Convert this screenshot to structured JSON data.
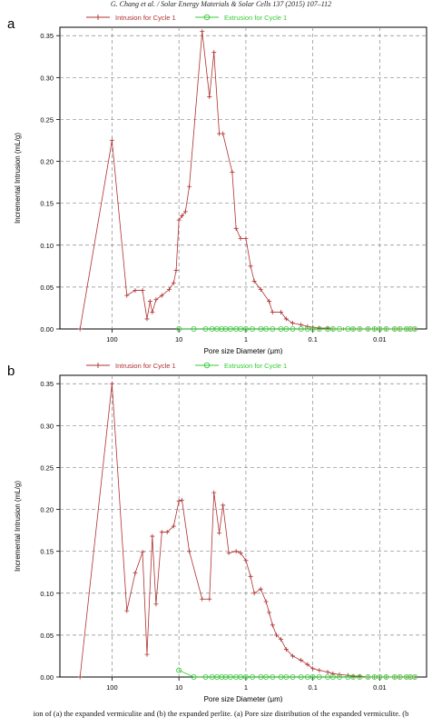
{
  "header": {
    "text": "G. Chang et al. / Solar Energy Materials & Solar Cells 137 (2015) 107–112"
  },
  "caption": {
    "text": "ion of (a) the expanded vermiculite and (b) the expanded perlite. (a) Pore size distribution of the expanded vermiculite. (b"
  },
  "colors": {
    "intrusion": "#b03030",
    "extrusion": "#33cc33",
    "grid": "#888888"
  },
  "chart_data": [
    {
      "panel": "a",
      "type": "line",
      "xlabel": "Pore size Diameter (μm)",
      "ylabel": "Incremental Intrusion (mL/g)",
      "x_scale": "log-reversed",
      "xlim": [
        600,
        0.002
      ],
      "ylim": [
        0,
        0.36
      ],
      "x_ticks": [
        100,
        10,
        1,
        0.1,
        0.01
      ],
      "x_tick_labels": [
        "100",
        "10",
        "1",
        "0.1",
        "0.01"
      ],
      "y_ticks": [
        0.0,
        0.05,
        0.1,
        0.15,
        0.2,
        0.25,
        0.3,
        0.35
      ],
      "y_tick_labels": [
        "0.00",
        "0.05",
        "0.10",
        "0.15",
        "0.20",
        "0.25",
        "0.30",
        "0.35"
      ],
      "grid": true,
      "legend_position": "top",
      "series": [
        {
          "name": "Intrusion for Cycle 1",
          "marker": "plus",
          "x": [
            300,
            100,
            60,
            45,
            35,
            30,
            27,
            25,
            22,
            18,
            14,
            12,
            11,
            10,
            9,
            8,
            7,
            4.5,
            3.5,
            3,
            2.5,
            2.2,
            1.6,
            1.4,
            1.2,
            1.0,
            0.85,
            0.75,
            0.6,
            0.45,
            0.4,
            0.3,
            0.25,
            0.2,
            0.15,
            0.12,
            0.1,
            0.08,
            0.06,
            0.05,
            0.035,
            0.025,
            0.02,
            0.015,
            0.012,
            0.01,
            0.008,
            0.006,
            0.005,
            0.004,
            0.0035,
            0.003
          ],
          "y": [
            0.0,
            0.225,
            0.04,
            0.046,
            0.046,
            0.012,
            0.033,
            0.02,
            0.035,
            0.04,
            0.047,
            0.055,
            0.07,
            0.13,
            0.135,
            0.14,
            0.17,
            0.355,
            0.277,
            0.33,
            0.233,
            0.233,
            0.187,
            0.12,
            0.108,
            0.108,
            0.075,
            0.057,
            0.047,
            0.033,
            0.02,
            0.02,
            0.012,
            0.007,
            0.005,
            0.003,
            0.002,
            0.001,
            0.001,
            0.0,
            0.0,
            0.0,
            0.0,
            0.0,
            0.0,
            0.0,
            0.0,
            0.0,
            0.0,
            0.0,
            0.0,
            0.0
          ]
        },
        {
          "name": "Extrusion for Cycle 1",
          "marker": "circle",
          "x": [
            10,
            6,
            4,
            3.2,
            2.7,
            2.3,
            2.0,
            1.7,
            1.4,
            1.2,
            1.0,
            0.8,
            0.6,
            0.5,
            0.4,
            0.3,
            0.25,
            0.2,
            0.15,
            0.12,
            0.1,
            0.08,
            0.06,
            0.05,
            0.04,
            0.03,
            0.025,
            0.02,
            0.015,
            0.012,
            0.01,
            0.008,
            0.006,
            0.005,
            0.004,
            0.0035,
            0.003
          ],
          "y": [
            0,
            0,
            0,
            0,
            0,
            0,
            0,
            0,
            0,
            0,
            0,
            0,
            0,
            0,
            0,
            0,
            0,
            0,
            0,
            0,
            0,
            0,
            0,
            0,
            0,
            0,
            0,
            0,
            0,
            0,
            0,
            0,
            0,
            0,
            0,
            0,
            0
          ]
        }
      ]
    },
    {
      "panel": "b",
      "type": "line",
      "xlabel": "Pore size Diameter (μm)",
      "ylabel": "Incremental Intrusion (mL/g)",
      "x_scale": "log-reversed",
      "xlim": [
        600,
        0.002
      ],
      "ylim": [
        0,
        0.36
      ],
      "x_ticks": [
        100,
        10,
        1,
        0.1,
        0.01
      ],
      "x_tick_labels": [
        "100",
        "10",
        "1",
        "0.1",
        "0.01"
      ],
      "y_ticks": [
        0.0,
        0.05,
        0.1,
        0.15,
        0.2,
        0.25,
        0.3,
        0.35
      ],
      "y_tick_labels": [
        "0.00",
        "0.05",
        "0.10",
        "0.15",
        "0.20",
        "0.25",
        "0.30",
        "0.35"
      ],
      "grid": true,
      "legend_position": "top",
      "series": [
        {
          "name": "Intrusion for Cycle 1",
          "marker": "plus",
          "x": [
            300,
            100,
            60,
            45,
            35,
            30,
            25,
            22,
            18,
            15,
            12,
            10,
            9,
            7,
            4.5,
            3.5,
            3,
            2.5,
            2.2,
            1.8,
            1.4,
            1.2,
            1.0,
            0.85,
            0.75,
            0.6,
            0.5,
            0.45,
            0.4,
            0.35,
            0.3,
            0.25,
            0.2,
            0.15,
            0.12,
            0.1,
            0.08,
            0.06,
            0.05,
            0.04,
            0.03,
            0.025,
            0.02,
            0.015,
            0.012,
            0.01,
            0.008,
            0.006,
            0.005,
            0.004,
            0.0035,
            0.003
          ],
          "y": [
            0.0,
            0.35,
            0.079,
            0.124,
            0.149,
            0.027,
            0.168,
            0.087,
            0.173,
            0.173,
            0.18,
            0.21,
            0.211,
            0.15,
            0.093,
            0.093,
            0.22,
            0.172,
            0.205,
            0.148,
            0.15,
            0.148,
            0.139,
            0.12,
            0.1,
            0.105,
            0.09,
            0.077,
            0.062,
            0.05,
            0.045,
            0.033,
            0.025,
            0.02,
            0.015,
            0.01,
            0.008,
            0.006,
            0.004,
            0.003,
            0.002,
            0.001,
            0.001,
            0.0,
            0.0,
            0.0,
            0.0,
            0.0,
            0.0,
            0.0,
            0.0,
            0.0
          ]
        },
        {
          "name": "Extrusion for Cycle 1",
          "marker": "circle",
          "x": [
            10,
            6,
            4,
            3.2,
            2.7,
            2.3,
            2.0,
            1.7,
            1.4,
            1.2,
            1.0,
            0.8,
            0.6,
            0.5,
            0.4,
            0.3,
            0.25,
            0.2,
            0.15,
            0.12,
            0.1,
            0.08,
            0.06,
            0.05,
            0.04,
            0.03,
            0.025,
            0.02,
            0.015,
            0.012,
            0.01,
            0.008,
            0.006,
            0.005,
            0.004,
            0.0035,
            0.003
          ],
          "y": [
            0.008,
            0.0,
            0,
            0,
            0,
            0,
            0,
            0,
            0,
            0,
            0,
            0,
            0,
            0,
            0,
            0,
            0,
            0,
            0,
            0,
            0,
            0,
            0,
            0,
            0,
            0,
            0,
            0,
            0,
            0,
            0,
            0,
            0,
            0,
            0,
            0,
            0
          ]
        }
      ]
    }
  ]
}
